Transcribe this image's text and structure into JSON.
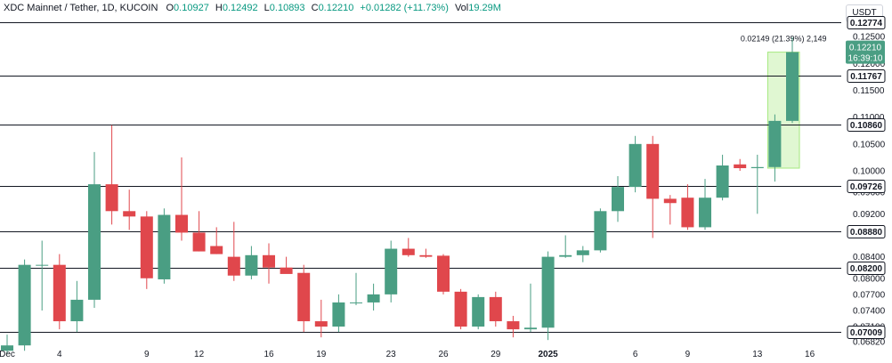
{
  "header": {
    "symbol": "XDC Mainnet / Tether, 1D, KUCOIN",
    "o_label": "O",
    "o": "0.10927",
    "h_label": "H",
    "h": "0.12492",
    "l_label": "L",
    "l": "0.10893",
    "c_label": "C",
    "c": "0.12210",
    "change": "+0.01282 (+11.73%)",
    "vol_label": "Vol",
    "vol": "19.29M"
  },
  "unit_label": "USDT",
  "price_label": {
    "price": "0.12210",
    "countdown": "16:39:10"
  },
  "measure_label": "0.02149 (21.39%) 2,149",
  "colors": {
    "up": "#4a9e83",
    "down": "#e0474c",
    "level": "#131722",
    "measure": "#a5e87f"
  },
  "chart_data": {
    "type": "candlestick",
    "yticks": [
      "0.12500",
      "0.12000",
      "0.11500",
      "0.11000",
      "0.10500",
      "0.10000",
      "0.09600",
      "0.09200",
      "0.08800",
      "0.08400",
      "0.08000",
      "0.07700",
      "0.07400",
      "0.07100",
      "0.06820"
    ],
    "xticks": [
      {
        "label": "Dec",
        "idx": 0,
        "bold": false
      },
      {
        "label": "4",
        "idx": 3,
        "bold": false
      },
      {
        "label": "9",
        "idx": 8,
        "bold": false
      },
      {
        "label": "12",
        "idx": 11,
        "bold": false
      },
      {
        "label": "16",
        "idx": 15,
        "bold": false
      },
      {
        "label": "19",
        "idx": 18,
        "bold": false
      },
      {
        "label": "23",
        "idx": 22,
        "bold": false
      },
      {
        "label": "26",
        "idx": 25,
        "bold": false
      },
      {
        "label": "29",
        "idx": 28,
        "bold": false
      },
      {
        "label": "2025",
        "idx": 31,
        "bold": true
      },
      {
        "label": "6",
        "idx": 36,
        "bold": false
      },
      {
        "label": "9",
        "idx": 39,
        "bold": false
      },
      {
        "label": "13",
        "idx": 43,
        "bold": false
      },
      {
        "label": "16",
        "idx": 46,
        "bold": false
      }
    ],
    "levels": [
      "0.12774",
      "0.11767",
      "0.10860",
      "0.09726",
      "0.08880",
      "0.08200",
      "0.07009"
    ],
    "candles": [
      {
        "o": 0.0665,
        "h": 0.0695,
        "l": 0.066,
        "c": 0.0675
      },
      {
        "o": 0.0675,
        "h": 0.0835,
        "l": 0.0665,
        "c": 0.0825
      },
      {
        "o": 0.0825,
        "h": 0.087,
        "l": 0.074,
        "c": 0.0825
      },
      {
        "o": 0.0825,
        "h": 0.0845,
        "l": 0.0705,
        "c": 0.072
      },
      {
        "o": 0.072,
        "h": 0.0795,
        "l": 0.07,
        "c": 0.076
      },
      {
        "o": 0.076,
        "h": 0.1035,
        "l": 0.0745,
        "c": 0.0975
      },
      {
        "o": 0.0975,
        "h": 0.1085,
        "l": 0.09,
        "c": 0.0925
      },
      {
        "o": 0.0925,
        "h": 0.0965,
        "l": 0.089,
        "c": 0.0915
      },
      {
        "o": 0.0915,
        "h": 0.0925,
        "l": 0.078,
        "c": 0.08
      },
      {
        "o": 0.0798,
        "h": 0.093,
        "l": 0.079,
        "c": 0.0918
      },
      {
        "o": 0.0918,
        "h": 0.1025,
        "l": 0.087,
        "c": 0.0885
      },
      {
        "o": 0.0885,
        "h": 0.0925,
        "l": 0.085,
        "c": 0.085
      },
      {
        "o": 0.086,
        "h": 0.0895,
        "l": 0.0845,
        "c": 0.0845
      },
      {
        "o": 0.084,
        "h": 0.0905,
        "l": 0.0795,
        "c": 0.0805
      },
      {
        "o": 0.0805,
        "h": 0.086,
        "l": 0.0798,
        "c": 0.0843
      },
      {
        "o": 0.0843,
        "h": 0.0865,
        "l": 0.079,
        "c": 0.082
      },
      {
        "o": 0.082,
        "h": 0.084,
        "l": 0.081,
        "c": 0.0808
      },
      {
        "o": 0.081,
        "h": 0.0825,
        "l": 0.07,
        "c": 0.072
      },
      {
        "o": 0.072,
        "h": 0.076,
        "l": 0.069,
        "c": 0.071
      },
      {
        "o": 0.071,
        "h": 0.077,
        "l": 0.07,
        "c": 0.0755
      },
      {
        "o": 0.0755,
        "h": 0.081,
        "l": 0.075,
        "c": 0.0755
      },
      {
        "o": 0.0755,
        "h": 0.079,
        "l": 0.074,
        "c": 0.077
      },
      {
        "o": 0.077,
        "h": 0.087,
        "l": 0.0755,
        "c": 0.0855
      },
      {
        "o": 0.0855,
        "h": 0.0875,
        "l": 0.084,
        "c": 0.0843
      },
      {
        "o": 0.0843,
        "h": 0.0855,
        "l": 0.0838,
        "c": 0.084
      },
      {
        "o": 0.0842,
        "h": 0.0845,
        "l": 0.077,
        "c": 0.0775
      },
      {
        "o": 0.0775,
        "h": 0.078,
        "l": 0.0705,
        "c": 0.071
      },
      {
        "o": 0.071,
        "h": 0.077,
        "l": 0.0705,
        "c": 0.0765
      },
      {
        "o": 0.0765,
        "h": 0.0775,
        "l": 0.071,
        "c": 0.072
      },
      {
        "o": 0.072,
        "h": 0.073,
        "l": 0.069,
        "c": 0.0705
      },
      {
        "o": 0.0705,
        "h": 0.079,
        "l": 0.07,
        "c": 0.0708
      },
      {
        "o": 0.0708,
        "h": 0.085,
        "l": 0.0685,
        "c": 0.084
      },
      {
        "o": 0.084,
        "h": 0.088,
        "l": 0.0838,
        "c": 0.0843
      },
      {
        "o": 0.0843,
        "h": 0.086,
        "l": 0.083,
        "c": 0.0852
      },
      {
        "o": 0.0852,
        "h": 0.093,
        "l": 0.0848,
        "c": 0.0925
      },
      {
        "o": 0.0925,
        "h": 0.099,
        "l": 0.0905,
        "c": 0.097
      },
      {
        "o": 0.097,
        "h": 0.1065,
        "l": 0.096,
        "c": 0.105
      },
      {
        "o": 0.105,
        "h": 0.1065,
        "l": 0.0875,
        "c": 0.0948
      },
      {
        "o": 0.0948,
        "h": 0.0955,
        "l": 0.09,
        "c": 0.094
      },
      {
        "o": 0.095,
        "h": 0.0975,
        "l": 0.089,
        "c": 0.0895
      },
      {
        "o": 0.0895,
        "h": 0.0985,
        "l": 0.089,
        "c": 0.095
      },
      {
        "o": 0.095,
        "h": 0.103,
        "l": 0.0945,
        "c": 0.101
      },
      {
        "o": 0.1012,
        "h": 0.1022,
        "l": 0.1,
        "c": 0.1005
      },
      {
        "o": 0.1005,
        "h": 0.103,
        "l": 0.092,
        "c": 0.1007
      },
      {
        "o": 0.1007,
        "h": 0.1105,
        "l": 0.098,
        "c": 0.1093
      },
      {
        "o": 0.1093,
        "h": 0.1249,
        "l": 0.1089,
        "c": 0.1221
      }
    ]
  }
}
